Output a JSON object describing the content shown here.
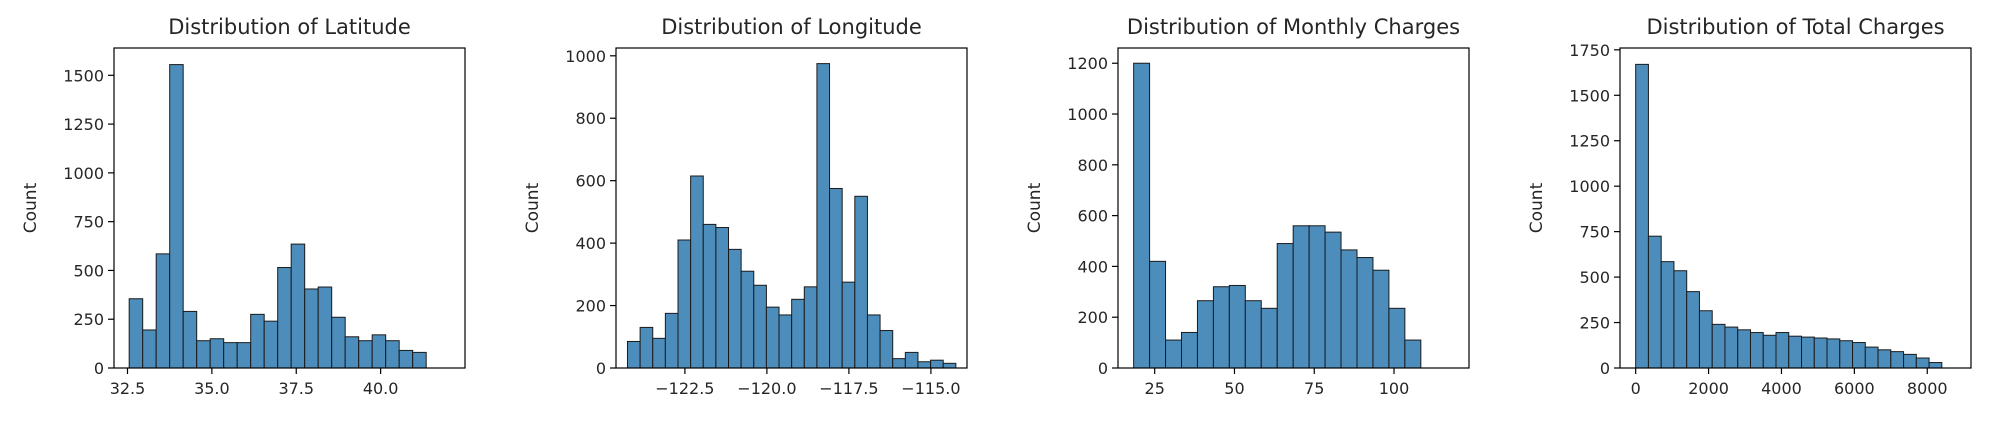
{
  "chart_data": [
    {
      "type": "bar",
      "title": "Distribution of Latitude",
      "xlabel": "",
      "ylabel": "Count",
      "xlim": [
        32.1,
        42.5
      ],
      "ylim": [
        0,
        1640
      ],
      "xticks": [
        32.5,
        35.0,
        37.5,
        40.0
      ],
      "xtick_labels": [
        "32.5",
        "35.0",
        "37.5",
        "40.0"
      ],
      "yticks": [
        0,
        250,
        500,
        750,
        1000,
        1250,
        1500
      ],
      "ytick_labels": [
        "0",
        "250",
        "500",
        "750",
        "1000",
        "1250",
        "1500"
      ],
      "bin_start": 32.55,
      "bin_width": 0.4,
      "values": [
        355,
        195,
        585,
        1555,
        290,
        140,
        150,
        130,
        130,
        275,
        240,
        515,
        635,
        405,
        415,
        260,
        160,
        140,
        170,
        140,
        90,
        80
      ]
    },
    {
      "type": "bar",
      "title": "Distribution of Longitude",
      "xlabel": "",
      "ylabel": "Count",
      "xlim": [
        -124.6,
        -113.9
      ],
      "ylim": [
        0,
        1025
      ],
      "xticks": [
        -122.5,
        -120.0,
        -117.5,
        -115.0
      ],
      "xtick_labels": [
        "−122.5",
        "−120.0",
        "−117.5",
        "−115.0"
      ],
      "yticks": [
        0,
        200,
        400,
        600,
        800,
        1000
      ],
      "ytick_labels": [
        "0",
        "200",
        "400",
        "600",
        "800",
        "1000"
      ],
      "bin_start": -124.25,
      "bin_width": 0.385,
      "values": [
        85,
        130,
        95,
        175,
        410,
        615,
        460,
        450,
        380,
        310,
        265,
        195,
        170,
        220,
        260,
        975,
        575,
        275,
        550,
        170,
        120,
        30,
        50,
        20,
        25,
        15
      ]
    },
    {
      "type": "bar",
      "title": "Distribution of Monthly Charges",
      "xlabel": "",
      "ylabel": "Count",
      "xlim": [
        13.5,
        123.5
      ],
      "ylim": [
        0,
        1260
      ],
      "xticks": [
        25,
        50,
        75,
        100
      ],
      "xtick_labels": [
        "25",
        "50",
        "75",
        "100"
      ],
      "yticks": [
        0,
        200,
        400,
        600,
        800,
        1000,
        1200
      ],
      "ytick_labels": [
        "0",
        "200",
        "400",
        "600",
        "800",
        "1000",
        "1200"
      ],
      "bin_start": 18.4,
      "bin_width": 5.0,
      "values": [
        1200,
        420,
        110,
        140,
        265,
        320,
        325,
        265,
        235,
        490,
        560,
        560,
        535,
        465,
        435,
        385,
        235,
        110
      ]
    },
    {
      "type": "bar",
      "title": "Distribution of Total Charges",
      "xlabel": "",
      "ylabel": "Count",
      "xlim": [
        -430,
        9200
      ],
      "ylim": [
        0,
        1760
      ],
      "xticks": [
        0,
        2000,
        4000,
        6000,
        8000
      ],
      "xtick_labels": [
        "0",
        "2000",
        "4000",
        "6000",
        "8000"
      ],
      "yticks": [
        0,
        250,
        500,
        750,
        1000,
        1250,
        1500,
        1750
      ],
      "ytick_labels": [
        "0",
        "250",
        "500",
        "750",
        "1000",
        "1250",
        "1500",
        "1750"
      ],
      "bin_start": 0,
      "bin_width": 350,
      "values": [
        1670,
        725,
        585,
        535,
        420,
        315,
        240,
        225,
        210,
        195,
        180,
        195,
        175,
        170,
        165,
        160,
        150,
        140,
        115,
        100,
        90,
        75,
        55,
        30
      ]
    }
  ]
}
